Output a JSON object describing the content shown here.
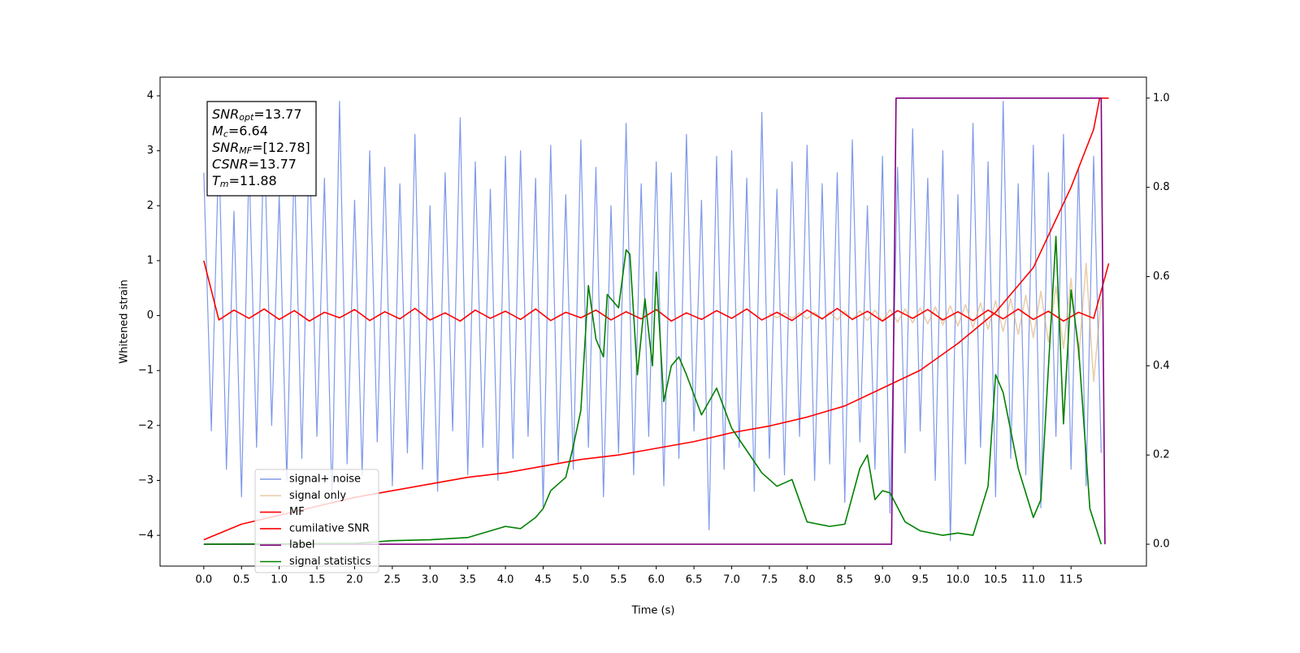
{
  "chart_data": {
    "type": "line",
    "xlabel": "Time (s)",
    "ylabel": "Whitened strain",
    "xlim": [
      -0.58,
      12.5
    ],
    "ylim": [
      -4.56,
      4.34
    ],
    "y2lim": [
      -0.049,
      1.047
    ],
    "xticks": [
      {
        "value": 0,
        "label": "0.0"
      },
      {
        "value": 0.5,
        "label": "0.5"
      },
      {
        "value": 1,
        "label": "1.0"
      },
      {
        "value": 1.5,
        "label": "1.5"
      },
      {
        "value": 2,
        "label": "2.0"
      },
      {
        "value": 2.5,
        "label": "2.5"
      },
      {
        "value": 3,
        "label": "3.0"
      },
      {
        "value": 3.5,
        "label": "3.5"
      },
      {
        "value": 4,
        "label": "4.0"
      },
      {
        "value": 4.5,
        "label": "4.5"
      },
      {
        "value": 5,
        "label": "5.0"
      },
      {
        "value": 5.5,
        "label": "5.5"
      },
      {
        "value": 6,
        "label": "6.0"
      },
      {
        "value": 6.5,
        "label": "6.5"
      },
      {
        "value": 7,
        "label": "7.0"
      },
      {
        "value": 7.5,
        "label": "7.5"
      },
      {
        "value": 8,
        "label": "8.0"
      },
      {
        "value": 8.5,
        "label": "8.5"
      },
      {
        "value": 9,
        "label": "9.0"
      },
      {
        "value": 9.5,
        "label": "9.5"
      },
      {
        "value": 10,
        "label": "10.0"
      },
      {
        "value": 10.5,
        "label": "10.5"
      },
      {
        "value": 11,
        "label": "11.0"
      },
      {
        "value": 11.5,
        "label": "11.5"
      }
    ],
    "yticks": [
      {
        "value": -4,
        "label": "−4"
      },
      {
        "value": -3,
        "label": "−3"
      },
      {
        "value": -2,
        "label": "−2"
      },
      {
        "value": -1,
        "label": "−1"
      },
      0,
      1,
      2,
      3,
      4
    ],
    "y2ticks": [
      {
        "value": 0,
        "label": "0.0"
      },
      {
        "value": 0.2,
        "label": "0.2"
      },
      {
        "value": 0.4,
        "label": "0.4"
      },
      {
        "value": 0.6,
        "label": "0.6"
      },
      {
        "value": 0.8,
        "label": "0.8"
      },
      {
        "value": 1,
        "label": "1.0"
      }
    ],
    "grid": false,
    "legend": "lower left",
    "annotation": [
      {
        "var": "SNR",
        "sub": "opt",
        "text": "=13.77"
      },
      {
        "var": "M",
        "sub": "c",
        "text": "=6.64"
      },
      {
        "var": "SNR",
        "sub": "MF",
        "text": "=[12.78]"
      },
      {
        "var": "CSNR",
        "sub": null,
        "text": "=13.77"
      },
      {
        "var": "T",
        "sub": "m",
        "text": "=11.88"
      }
    ],
    "series": [
      {
        "name": "signal+ noise",
        "color": "#7893e8",
        "axis": "y",
        "x": [
          0,
          0.1,
          0.2,
          0.3,
          0.4,
          0.5,
          0.6,
          0.7,
          0.8,
          0.9,
          1,
          1.1,
          1.2,
          1.3,
          1.4,
          1.5,
          1.6,
          1.7,
          1.8,
          1.9,
          2,
          2.1,
          2.2,
          2.3,
          2.4,
          2.5,
          2.6,
          2.7,
          2.8,
          2.9,
          3,
          3.1,
          3.2,
          3.3,
          3.4,
          3.5,
          3.6,
          3.7,
          3.8,
          3.9,
          4,
          4.1,
          4.2,
          4.3,
          4.4,
          4.5,
          4.6,
          4.7,
          4.8,
          4.9,
          5,
          5.1,
          5.2,
          5.3,
          5.4,
          5.5,
          5.6,
          5.7,
          5.8,
          5.9,
          6,
          6.1,
          6.2,
          6.3,
          6.4,
          6.5,
          6.6,
          6.7,
          6.8,
          6.9,
          7,
          7.1,
          7.2,
          7.3,
          7.4,
          7.5,
          7.6,
          7.7,
          7.8,
          7.9,
          8,
          8.1,
          8.2,
          8.3,
          8.4,
          8.5,
          8.6,
          8.7,
          8.8,
          8.9,
          9,
          9.1,
          9.2,
          9.3,
          9.4,
          9.5,
          9.6,
          9.7,
          9.8,
          9.9,
          10,
          10.1,
          10.2,
          10.3,
          10.4,
          10.5,
          10.6,
          10.7,
          10.8,
          10.9,
          11,
          11.1,
          11.2,
          11.3,
          11.4,
          11.5,
          11.6,
          11.7,
          11.8,
          11.9
        ],
        "values": [
          2.6,
          -2.1,
          3.1,
          -2.8,
          1.9,
          -3.3,
          2.8,
          -2.4,
          3.4,
          -2.0,
          2.2,
          -3.0,
          2.9,
          -2.6,
          3.2,
          -2.2,
          2.5,
          -3.4,
          3.9,
          -2.7,
          2.1,
          -2.9,
          3.0,
          -2.3,
          2.7,
          -3.1,
          2.4,
          -2.5,
          3.3,
          -2.8,
          2.0,
          -3.2,
          2.6,
          -2.1,
          3.6,
          -2.9,
          2.8,
          -2.4,
          2.3,
          -3.0,
          2.9,
          -2.6,
          3.0,
          -2.2,
          2.5,
          -3.5,
          3.1,
          -2.7,
          2.2,
          -2.8,
          3.2,
          -2.4,
          2.7,
          -3.3,
          2.0,
          -2.5,
          3.5,
          -2.9,
          2.4,
          -2.2,
          2.8,
          -3.1,
          2.6,
          -2.6,
          3.3,
          -2.1,
          2.1,
          -3.9,
          2.9,
          -2.8,
          3.0,
          -2.4,
          2.5,
          -3.2,
          3.7,
          -2.6,
          2.3,
          -2.9,
          2.8,
          -2.2,
          3.1,
          -3.0,
          2.4,
          -2.7,
          2.6,
          -3.4,
          3.2,
          -2.3,
          2.0,
          -2.8,
          2.9,
          -3.6,
          2.7,
          -2.5,
          3.4,
          -2.1,
          2.5,
          -3.0,
          3.0,
          -4.1,
          2.2,
          -2.7,
          3.5,
          -2.4,
          2.8,
          -3.3,
          3.9,
          -2.6,
          2.4,
          -2.9,
          3.1,
          -3.5,
          2.6,
          -2.2,
          3.3,
          -2.8,
          2.7,
          -3.1,
          2.9,
          -2.5
        ]
      },
      {
        "name": "signal only",
        "color": "#d9a566",
        "axis": "y",
        "x": [
          7.5,
          7.6,
          7.7,
          7.8,
          7.9,
          8,
          8.1,
          8.2,
          8.3,
          8.4,
          8.5,
          8.6,
          8.7,
          8.8,
          8.9,
          9,
          9.1,
          9.2,
          9.3,
          9.4,
          9.5,
          9.6,
          9.7,
          9.8,
          9.9,
          10,
          10.1,
          10.2,
          10.3,
          10.4,
          10.5,
          10.6,
          10.7,
          10.8,
          10.9,
          11,
          11.1,
          11.2,
          11.3,
          11.4,
          11.5,
          11.6,
          11.7,
          11.8,
          11.9
        ],
        "values": [
          0.04,
          -0.04,
          0.05,
          -0.05,
          0.05,
          -0.06,
          0.06,
          -0.07,
          0.07,
          -0.08,
          0.08,
          -0.08,
          0.09,
          -0.09,
          0.1,
          -0.1,
          0.11,
          -0.12,
          0.12,
          -0.13,
          0.14,
          -0.15,
          0.16,
          -0.17,
          0.18,
          -0.19,
          0.2,
          -0.22,
          0.23,
          -0.25,
          0.27,
          -0.29,
          0.31,
          -0.34,
          0.37,
          -0.4,
          0.44,
          -0.48,
          0.53,
          -0.6,
          0.68,
          -0.8,
          0.95,
          -1.2,
          0.3
        ]
      },
      {
        "name": "MF",
        "color": "#ff0000",
        "axis": "y",
        "x": [
          0,
          0.2,
          0.4,
          0.6,
          0.8,
          1,
          1.2,
          1.4,
          1.6,
          1.8,
          2,
          2.2,
          2.4,
          2.6,
          2.8,
          3,
          3.2,
          3.4,
          3.6,
          3.8,
          4,
          4.2,
          4.4,
          4.6,
          4.8,
          5,
          5.2,
          5.4,
          5.6,
          5.8,
          6,
          6.2,
          6.4,
          6.6,
          6.8,
          7,
          7.2,
          7.4,
          7.6,
          7.8,
          8,
          8.2,
          8.4,
          8.6,
          8.8,
          9,
          9.2,
          9.4,
          9.6,
          9.8,
          10,
          10.2,
          10.4,
          10.6,
          10.8,
          11,
          11.2,
          11.4,
          11.6,
          11.8,
          12
        ],
        "values": [
          1.0,
          -0.08,
          0.1,
          -0.05,
          0.12,
          -0.07,
          0.09,
          -0.1,
          0.06,
          -0.04,
          0.11,
          -0.09,
          0.07,
          -0.06,
          0.13,
          -0.08,
          0.05,
          -0.1,
          0.1,
          -0.05,
          0.08,
          -0.07,
          0.12,
          -0.09,
          0.06,
          -0.04,
          0.1,
          -0.08,
          0.07,
          -0.06,
          0.11,
          -0.1,
          0.05,
          -0.07,
          0.09,
          -0.05,
          0.12,
          -0.08,
          0.06,
          -0.09,
          0.1,
          -0.06,
          0.13,
          -0.07,
          0.08,
          -0.1,
          0.09,
          -0.05,
          0.11,
          -0.08,
          0.07,
          -0.09,
          0.1,
          -0.06,
          0.12,
          -0.07,
          0.08,
          -0.1,
          0.06,
          -0.05,
          0.95
        ]
      },
      {
        "name": "cumilative SNR",
        "color": "#ff0000",
        "axis": "y2",
        "x": [
          0,
          0.5,
          1,
          1.5,
          2,
          2.5,
          3,
          3.5,
          4,
          4.5,
          5,
          5.5,
          6,
          6.5,
          7,
          7.5,
          8,
          8.5,
          9,
          9.5,
          10,
          10.5,
          11,
          11.5,
          11.8,
          11.88,
          12
        ],
        "values": [
          0.01,
          0.045,
          0.065,
          0.085,
          0.105,
          0.12,
          0.135,
          0.15,
          0.16,
          0.175,
          0.19,
          0.2,
          0.215,
          0.23,
          0.25,
          0.265,
          0.285,
          0.31,
          0.35,
          0.39,
          0.45,
          0.52,
          0.62,
          0.8,
          0.93,
          1.0,
          1.0
        ]
      },
      {
        "name": "label",
        "color": "#800080",
        "axis": "y2",
        "x": [
          0,
          9.12,
          9.18,
          11.9,
          11.95
        ],
        "values": [
          0,
          0,
          1,
          1,
          0
        ]
      },
      {
        "name": "signal statistics",
        "color": "#008000",
        "axis": "y2",
        "x": [
          0,
          2,
          2.5,
          3,
          3.5,
          3.8,
          4,
          4.2,
          4.4,
          4.5,
          4.6,
          4.8,
          4.9,
          5,
          5.1,
          5.2,
          5.3,
          5.35,
          5.5,
          5.6,
          5.65,
          5.75,
          5.85,
          5.95,
          6,
          6.1,
          6.2,
          6.3,
          6.4,
          6.6,
          6.8,
          7,
          7.2,
          7.4,
          7.6,
          7.8,
          8,
          8.3,
          8.5,
          8.7,
          8.8,
          8.9,
          9,
          9.1,
          9.3,
          9.5,
          9.8,
          10,
          10.2,
          10.4,
          10.5,
          10.6,
          10.8,
          11,
          11.1,
          11.3,
          11.4,
          11.5,
          11.6,
          11.75,
          11.9
        ],
        "values": [
          0,
          0.002,
          0.008,
          0.01,
          0.015,
          0.03,
          0.04,
          0.035,
          0.06,
          0.08,
          0.12,
          0.15,
          0.22,
          0.3,
          0.58,
          0.46,
          0.42,
          0.56,
          0.53,
          0.66,
          0.65,
          0.38,
          0.55,
          0.4,
          0.61,
          0.32,
          0.4,
          0.42,
          0.38,
          0.29,
          0.35,
          0.26,
          0.21,
          0.16,
          0.13,
          0.145,
          0.05,
          0.04,
          0.045,
          0.17,
          0.2,
          0.1,
          0.12,
          0.115,
          0.05,
          0.03,
          0.02,
          0.025,
          0.02,
          0.13,
          0.38,
          0.34,
          0.17,
          0.06,
          0.1,
          0.69,
          0.27,
          0.57,
          0.44,
          0.08,
          0
        ]
      }
    ]
  }
}
